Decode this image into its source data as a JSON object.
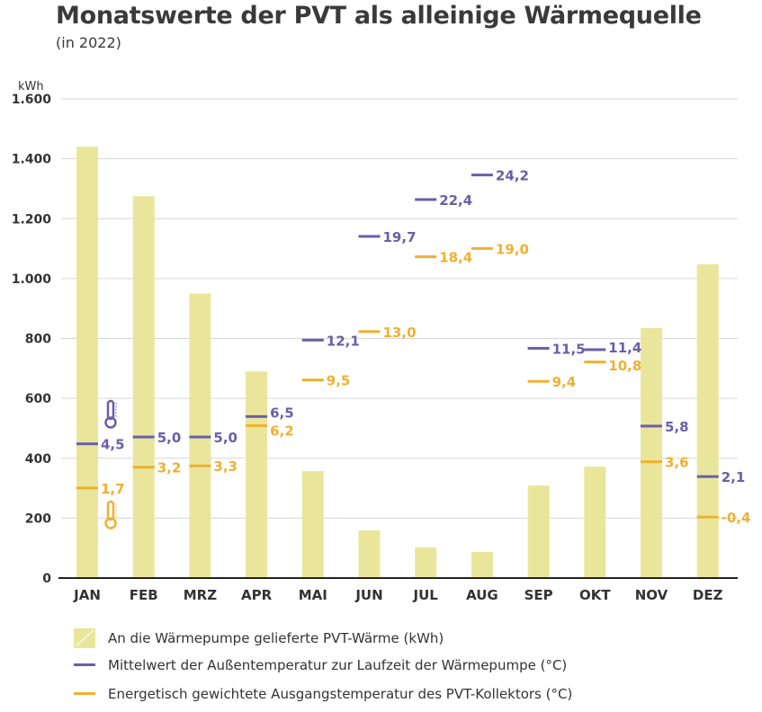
{
  "chart_data": {
    "type": "bar",
    "title": "Monatswerte der PVT als alleinige Wärmequelle",
    "subtitle": "(in 2022)",
    "ylabel": "kWh",
    "ylim": [
      0,
      1600
    ],
    "yticks": [
      0,
      200,
      400,
      600,
      800,
      1000,
      1200,
      1400,
      1600
    ],
    "ytick_labels": [
      "0",
      "200",
      "400",
      "600",
      "800",
      "1.000",
      "1.200",
      "1.400",
      "1.600"
    ],
    "grid": true,
    "categories": [
      "JAN",
      "FEB",
      "MRZ",
      "APR",
      "MAI",
      "JUN",
      "JUL",
      "AUG",
      "SEP",
      "OKT",
      "NOV",
      "DEZ"
    ],
    "series": [
      {
        "name": "An die Wärmepumpe gelieferte PVT-Wärme (kWh)",
        "kind": "bar",
        "color": "#e9e69c",
        "values": [
          1440,
          1275,
          950,
          690,
          357,
          159,
          102,
          87,
          309,
          372,
          835,
          1048
        ]
      },
      {
        "name": "Mittelwert der Außentemperatur zur Laufzeit der Wärmepumpe (°C)",
        "kind": "marker",
        "color": "#6b5ea8",
        "values": [
          4.5,
          5.0,
          5.0,
          6.5,
          12.1,
          19.7,
          22.4,
          24.2,
          11.5,
          11.4,
          5.8,
          2.1
        ],
        "labels": [
          "4,5",
          "5,0",
          "5,0",
          "6,5",
          "12,1",
          "19,7",
          "22,4",
          "24,2",
          "11,5",
          "11,4",
          "5,8",
          "2,1"
        ]
      },
      {
        "name": "Energetisch gewichtete Ausgangstemperatur des PVT-Kollektors (°C)",
        "kind": "marker",
        "color": "#f0b030",
        "values": [
          1.7,
          3.2,
          3.3,
          6.2,
          9.5,
          13.0,
          18.4,
          19.0,
          9.4,
          10.8,
          3.6,
          -0.4
        ],
        "labels": [
          "1,7",
          "3,2",
          "3,3",
          "6,2",
          "9,5",
          "13,0",
          "18,4",
          "19,0",
          "9,4",
          "10,8",
          "3,6",
          "-0,4"
        ]
      }
    ],
    "legend_position": "bottom"
  }
}
